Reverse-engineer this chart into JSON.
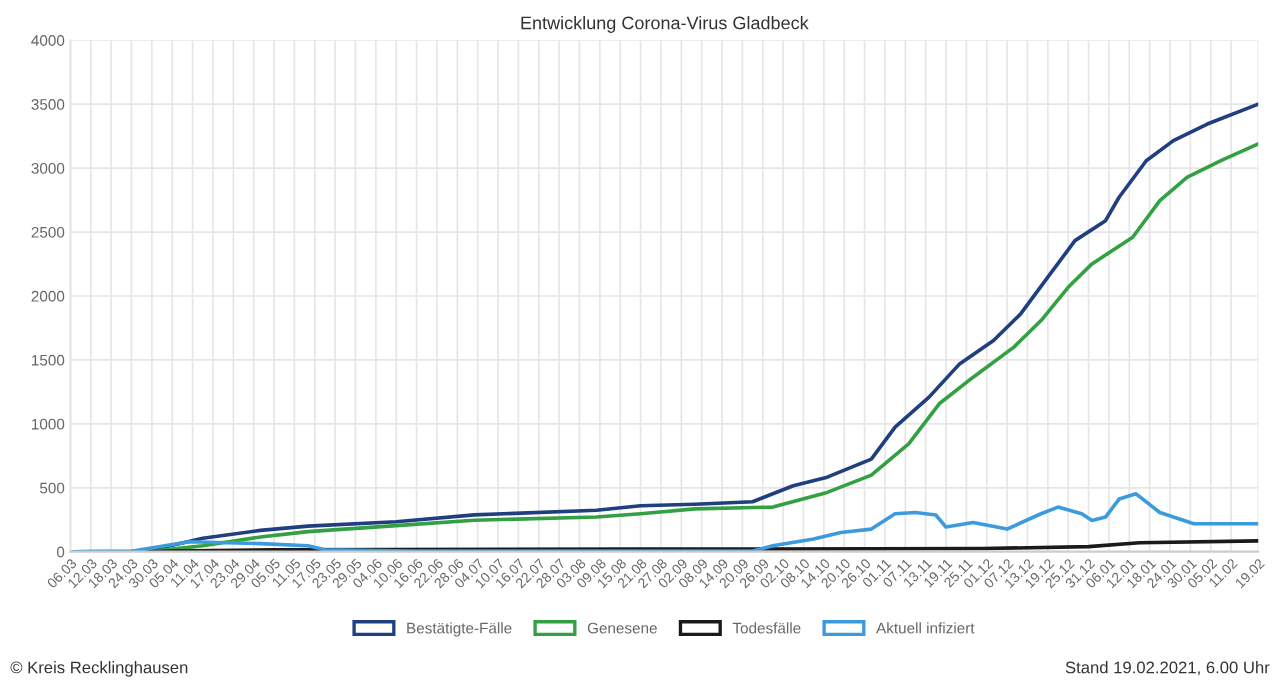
{
  "chart_data": {
    "type": "line",
    "title": "Entwicklung Corona-Virus Gladbeck",
    "series": [
      {
        "name": "Bestätigte-Fälle",
        "color": "#1f3f80",
        "x": [
          "2020-03-06",
          "2020-03-24",
          "2020-03-29",
          "2020-04-07",
          "2020-04-14",
          "2020-05-01",
          "2020-05-15",
          "2020-06-10",
          "2020-07-03",
          "2020-08-08",
          "2020-08-21",
          "2020-09-06",
          "2020-09-23",
          "2020-10-05",
          "2020-10-15",
          "2020-10-28",
          "2020-11-04",
          "2020-11-14",
          "2020-11-23",
          "2020-12-03",
          "2020-12-11",
          "2020-12-19",
          "2020-12-27",
          "2021-01-05",
          "2021-01-09",
          "2021-01-17",
          "2021-01-25",
          "2021-02-04",
          "2021-02-19"
        ],
        "values": [
          0,
          3,
          10,
          63,
          105,
          167,
          200,
          235,
          288,
          324,
          360,
          371,
          391,
          516,
          583,
          724,
          974,
          1209,
          1469,
          1652,
          1860,
          2147,
          2433,
          2589,
          2772,
          3058,
          3215,
          3345,
          3501
        ]
      },
      {
        "name": "Genesene",
        "color": "#33a043",
        "x": [
          "2020-03-06",
          "2020-03-29",
          "2020-04-07",
          "2020-04-14",
          "2020-05-01",
          "2020-05-15",
          "2020-06-10",
          "2020-07-03",
          "2020-08-08",
          "2020-08-21",
          "2020-09-06",
          "2020-09-29",
          "2020-10-15",
          "2020-10-28",
          "2020-11-08",
          "2020-11-17",
          "2020-11-27",
          "2020-12-09",
          "2020-12-17",
          "2020-12-25",
          "2021-01-01",
          "2021-01-13",
          "2021-01-21",
          "2021-01-29",
          "2021-02-08",
          "2021-02-19"
        ],
        "values": [
          0,
          0,
          26,
          47,
          115,
          157,
          204,
          246,
          272,
          297,
          335,
          349,
          464,
          599,
          844,
          1157,
          1365,
          1600,
          1808,
          2068,
          2251,
          2459,
          2746,
          2928,
          3058,
          3189
        ]
      },
      {
        "name": "Todesfälle",
        "color": "#1a1a1a",
        "x": [
          "2020-03-06",
          "2020-03-29",
          "2020-04-05",
          "2020-05-05",
          "2020-08-21",
          "2020-11-30",
          "2020-12-31",
          "2021-01-15",
          "2021-02-19"
        ],
        "values": [
          0,
          0,
          5,
          15,
          20,
          25,
          40,
          70,
          85
        ]
      },
      {
        "name": "Aktuell infiziert",
        "color": "#3b9bdc",
        "x": [
          "2020-03-06",
          "2020-03-24",
          "2020-04-10",
          "2020-05-01",
          "2020-05-15",
          "2020-05-20",
          "2020-06-15",
          "2020-09-23",
          "2020-09-29",
          "2020-10-11",
          "2020-10-19",
          "2020-10-28",
          "2020-11-04",
          "2020-11-10",
          "2020-11-16",
          "2020-11-19",
          "2020-11-27",
          "2020-12-07",
          "2020-12-17",
          "2020-12-22",
          "2020-12-29",
          "2021-01-01",
          "2021-01-05",
          "2021-01-09",
          "2021-01-14",
          "2021-01-21",
          "2021-01-31",
          "2021-02-19"
        ],
        "values": [
          0,
          3,
          78,
          63,
          47,
          16,
          5,
          5,
          47,
          99,
          151,
          177,
          297,
          307,
          287,
          193,
          229,
          177,
          297,
          349,
          297,
          245,
          271,
          412,
          453,
          307,
          219,
          219
        ]
      }
    ],
    "xlim": [
      "2020-03-06",
      "2021-02-19"
    ],
    "xticks": [
      {
        "value": "2020-03-06",
        "label": "06.03"
      },
      {
        "value": "2020-03-12",
        "label": "12.03"
      },
      {
        "value": "2020-03-18",
        "label": "18.03"
      },
      {
        "value": "2020-03-24",
        "label": "24.03"
      },
      {
        "value": "2020-03-30",
        "label": "30.03"
      },
      {
        "value": "2020-04-05",
        "label": "05.04"
      },
      {
        "value": "2020-04-11",
        "label": "11.04"
      },
      {
        "value": "2020-04-17",
        "label": "17.04"
      },
      {
        "value": "2020-04-23",
        "label": "23.04"
      },
      {
        "value": "2020-04-29",
        "label": "29.04"
      },
      {
        "value": "2020-05-05",
        "label": "05.05"
      },
      {
        "value": "2020-05-11",
        "label": "11.05"
      },
      {
        "value": "2020-05-17",
        "label": "17.05"
      },
      {
        "value": "2020-05-23",
        "label": "23.05"
      },
      {
        "value": "2020-05-29",
        "label": "29.05"
      },
      {
        "value": "2020-06-04",
        "label": "04.06"
      },
      {
        "value": "2020-06-10",
        "label": "10.06"
      },
      {
        "value": "2020-06-16",
        "label": "16.06"
      },
      {
        "value": "2020-06-22",
        "label": "22.06"
      },
      {
        "value": "2020-06-28",
        "label": "28.06"
      },
      {
        "value": "2020-07-04",
        "label": "04.07"
      },
      {
        "value": "2020-07-10",
        "label": "10.07"
      },
      {
        "value": "2020-07-16",
        "label": "16.07"
      },
      {
        "value": "2020-07-22",
        "label": "22.07"
      },
      {
        "value": "2020-07-28",
        "label": "28.07"
      },
      {
        "value": "2020-08-03",
        "label": "03.08"
      },
      {
        "value": "2020-08-09",
        "label": "09.08"
      },
      {
        "value": "2020-08-15",
        "label": "15.08"
      },
      {
        "value": "2020-08-21",
        "label": "21.08"
      },
      {
        "value": "2020-08-27",
        "label": "27.08"
      },
      {
        "value": "2020-09-02",
        "label": "02.09"
      },
      {
        "value": "2020-09-08",
        "label": "08.09"
      },
      {
        "value": "2020-09-14",
        "label": "14.09"
      },
      {
        "value": "2020-09-20",
        "label": "20.09"
      },
      {
        "value": "2020-09-26",
        "label": "26.09"
      },
      {
        "value": "2020-10-02",
        "label": "02.10"
      },
      {
        "value": "2020-10-08",
        "label": "08.10"
      },
      {
        "value": "2020-10-14",
        "label": "14.10"
      },
      {
        "value": "2020-10-20",
        "label": "20.10"
      },
      {
        "value": "2020-10-26",
        "label": "26.10"
      },
      {
        "value": "2020-11-01",
        "label": "01.11"
      },
      {
        "value": "2020-11-07",
        "label": "07.11"
      },
      {
        "value": "2020-11-13",
        "label": "13.11"
      },
      {
        "value": "2020-11-19",
        "label": "19.11"
      },
      {
        "value": "2020-11-25",
        "label": "25.11"
      },
      {
        "value": "2020-12-01",
        "label": "01.12"
      },
      {
        "value": "2020-12-07",
        "label": "07.12"
      },
      {
        "value": "2020-12-13",
        "label": "13.12"
      },
      {
        "value": "2020-12-19",
        "label": "19.12"
      },
      {
        "value": "2020-12-25",
        "label": "25.12"
      },
      {
        "value": "2020-12-31",
        "label": "31.12"
      },
      {
        "value": "2021-01-06",
        "label": "06.01"
      },
      {
        "value": "2021-01-12",
        "label": "12.01"
      },
      {
        "value": "2021-01-18",
        "label": "18.01"
      },
      {
        "value": "2021-01-24",
        "label": "24.01"
      },
      {
        "value": "2021-01-30",
        "label": "30.01"
      },
      {
        "value": "2021-02-05",
        "label": "05.02"
      },
      {
        "value": "2021-02-11",
        "label": "11.02"
      },
      {
        "value": "2021-02-19",
        "label": "19.02"
      }
    ],
    "ylim": [
      0,
      4000
    ],
    "yticks": [
      0,
      500,
      1000,
      1500,
      2000,
      2500,
      3000,
      3500,
      4000
    ],
    "grid": true,
    "legend": "bottom",
    "marker": "none",
    "line_style": "solid",
    "annotations": [
      "© Kreis Recklinghausen",
      "Stand 19.02.2021, 6.00 Uhr"
    ]
  }
}
